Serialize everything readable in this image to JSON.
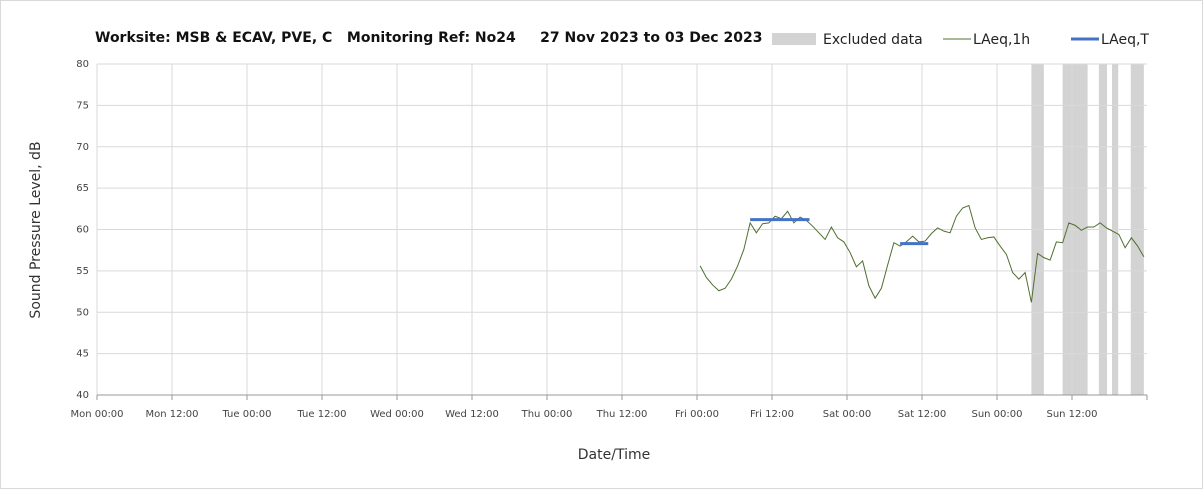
{
  "chart_data": {
    "type": "line",
    "title": "Worksite: MSB & ECAV, PVE, C   Monitoring Ref: No24     27 Nov 2023 to 03 Dec 2023",
    "xlabel": "Date/Time",
    "ylabel": "Sound Pressure Level, dB",
    "xlim": [
      0,
      168
    ],
    "xticks": [
      {
        "value": 0,
        "label": "Mon 00:00"
      },
      {
        "value": 12,
        "label": "Mon 12:00"
      },
      {
        "value": 24,
        "label": "Tue 00:00"
      },
      {
        "value": 36,
        "label": "Tue 12:00"
      },
      {
        "value": 48,
        "label": "Wed 00:00"
      },
      {
        "value": 60,
        "label": "Wed 12:00"
      },
      {
        "value": 72,
        "label": "Thu 00:00"
      },
      {
        "value": 84,
        "label": "Thu 12:00"
      },
      {
        "value": 96,
        "label": "Fri 00:00"
      },
      {
        "value": 108,
        "label": "Fri 12:00"
      },
      {
        "value": 120,
        "label": "Sat 00:00"
      },
      {
        "value": 132,
        "label": "Sat 12:00"
      },
      {
        "value": 144,
        "label": "Sun 00:00"
      },
      {
        "value": 156,
        "label": "Sun 12:00"
      }
    ],
    "ylim": [
      40,
      80
    ],
    "yticks": [
      40,
      45,
      50,
      55,
      60,
      65,
      70,
      75,
      80
    ],
    "grid": true,
    "excluded": {
      "name": "Excluded data",
      "color": "#d3d3d3",
      "ranges": [
        [
          149.5,
          151.5
        ],
        [
          154.5,
          158.5
        ],
        [
          160.3,
          161.6
        ],
        [
          162.4,
          163.4
        ],
        [
          165.4,
          167.5
        ]
      ]
    },
    "series": [
      {
        "name": "LAeq,1h",
        "color": "#4f6f2f",
        "x": [
          96.5,
          97.5,
          98.5,
          99.5,
          100.5,
          101.5,
          102.5,
          103.5,
          104.5,
          105.5,
          106.5,
          107.5,
          108.5,
          109.5,
          110.5,
          111.5,
          112.5,
          113.5,
          114.5,
          115.5,
          116.5,
          117.5,
          118.5,
          119.5,
          120.5,
          121.5,
          122.5,
          123.5,
          124.5,
          125.5,
          126.5,
          127.5,
          128.5,
          129.5,
          130.5,
          131.5,
          132.5,
          133.5,
          134.5,
          135.5,
          136.5,
          137.5,
          138.5,
          139.5,
          140.5,
          141.5,
          142.5,
          143.5,
          144.5,
          145.5,
          146.5,
          147.5,
          148.5,
          149.5,
          150.5,
          151.5,
          152.5,
          153.5,
          154.5,
          155.5,
          156.5,
          157.5,
          158.5,
          159.5,
          160.5,
          161.5,
          162.5,
          163.5,
          164.5,
          165.5,
          166.5,
          167.5
        ],
        "values": [
          55.6,
          54.2,
          53.3,
          52.6,
          52.9,
          54.0,
          55.6,
          57.6,
          60.8,
          59.6,
          60.7,
          60.8,
          61.6,
          61.3,
          62.2,
          60.8,
          61.5,
          61.1,
          60.4,
          59.6,
          58.8,
          60.3,
          59.0,
          58.5,
          57.2,
          55.5,
          56.2,
          53.2,
          51.7,
          52.9,
          55.7,
          58.4,
          58.0,
          58.5,
          59.2,
          58.5,
          58.6,
          59.5,
          60.2,
          59.8,
          59.6,
          61.6,
          62.6,
          62.9,
          60.2,
          58.8,
          59.0,
          59.1,
          58.0,
          57.0,
          54.8,
          54.0,
          54.8,
          51.2,
          57.1,
          56.6,
          56.3,
          58.5,
          58.4,
          60.8,
          60.5,
          59.9,
          60.3,
          60.3,
          60.8,
          60.2,
          59.8,
          59.4,
          57.8,
          59.0,
          58.0,
          56.7
        ]
      },
      {
        "name": "LAeq,T",
        "color": "#4472c4",
        "x": [
          104.5,
          114,
          114,
          128.5,
          133
        ],
        "values": [
          61.2,
          61.2,
          null,
          58.3,
          58.3
        ]
      }
    ]
  }
}
